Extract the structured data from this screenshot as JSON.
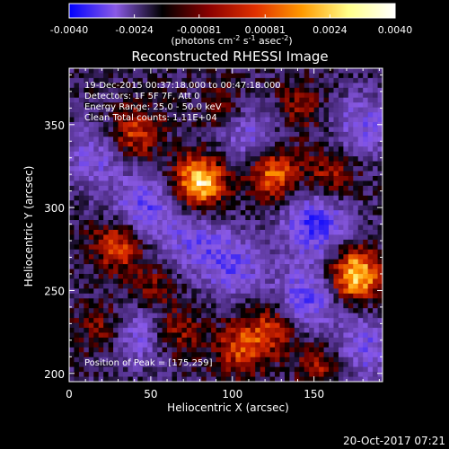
{
  "colorbar": {
    "tick_labels": [
      "-0.0040",
      "-0.0024",
      "-0.00081",
      "0.00081",
      "0.0024",
      "0.0040"
    ],
    "tick_values": [
      -0.004,
      -0.0024,
      -0.00081,
      0.00081,
      0.0024,
      0.004
    ],
    "range": [
      -0.004,
      0.004
    ],
    "unit_prefix": "(photons cm",
    "unit_exp1": "-2",
    "unit_mid": " s",
    "unit_exp2": "-1",
    "unit_mid2": " asec",
    "unit_exp3": "-2",
    "unit_suffix": ")",
    "colors": [
      "#0000ff",
      "#8a5ae6",
      "#000000",
      "#8a0000",
      "#e03000",
      "#ff9a00",
      "#ffff8a",
      "#ffffff"
    ]
  },
  "chart_data": {
    "type": "heatmap",
    "title": "Reconstructed RHESSI Image",
    "xlabel": "Heliocentric X (arcsec)",
    "ylabel": "Heliocentric Y (arcsec)",
    "xlim": [
      0,
      192
    ],
    "ylim": [
      195,
      384
    ],
    "x_ticks": [
      0,
      50,
      100,
      150
    ],
    "y_ticks": [
      200,
      250,
      300,
      350
    ],
    "x_tick_labels": [
      "0",
      "50",
      "100",
      "150"
    ],
    "y_tick_labels": [
      "200",
      "250",
      "300",
      "350"
    ],
    "annotations": [
      "19-Dec-2015 00:37:18.000 to 00:47:18.000",
      "Detectors: 1F 5F 7F, Att 0",
      "Energy Range: 25.0 - 50.0 keV",
      "Clean    Total counts: 1.11E+04"
    ],
    "peak_label": "Position of Peak = [175,259]",
    "peak": [
      175,
      259
    ],
    "sources": [
      {
        "x": 80,
        "y": 315,
        "amp": 1.0
      },
      {
        "x": 125,
        "y": 320,
        "amp": 0.7
      },
      {
        "x": 175,
        "y": 259,
        "amp": 1.0
      },
      {
        "x": 40,
        "y": 345,
        "amp": 0.55
      },
      {
        "x": 30,
        "y": 278,
        "amp": 0.6
      },
      {
        "x": 105,
        "y": 215,
        "amp": 0.55
      },
      {
        "x": 65,
        "y": 225,
        "amp": 0.45
      },
      {
        "x": 125,
        "y": 228,
        "amp": 0.5
      },
      {
        "x": 20,
        "y": 228,
        "amp": 0.35
      },
      {
        "x": 155,
        "y": 205,
        "amp": 0.4
      },
      {
        "x": 160,
        "y": 320,
        "amp": 0.4
      },
      {
        "x": 140,
        "y": 360,
        "amp": 0.35
      },
      {
        "x": 95,
        "y": 360,
        "amp": 0.3
      },
      {
        "x": 50,
        "y": 250,
        "amp": 0.35
      }
    ],
    "negative_regions": [
      {
        "x": 150,
        "y": 290,
        "amp": 0.7
      },
      {
        "x": 45,
        "y": 300,
        "amp": 0.55
      },
      {
        "x": 100,
        "y": 265,
        "amp": 0.5
      },
      {
        "x": 145,
        "y": 245,
        "amp": 0.6
      },
      {
        "x": 110,
        "y": 345,
        "amp": 0.45
      },
      {
        "x": 45,
        "y": 225,
        "amp": 0.5
      },
      {
        "x": 180,
        "y": 350,
        "amp": 0.45
      },
      {
        "x": 180,
        "y": 215,
        "amp": 0.5
      },
      {
        "x": 15,
        "y": 330,
        "amp": 0.4
      },
      {
        "x": 75,
        "y": 280,
        "amp": 0.4
      }
    ]
  },
  "footer": {
    "timestamp": "20-Oct-2017 07:21"
  }
}
